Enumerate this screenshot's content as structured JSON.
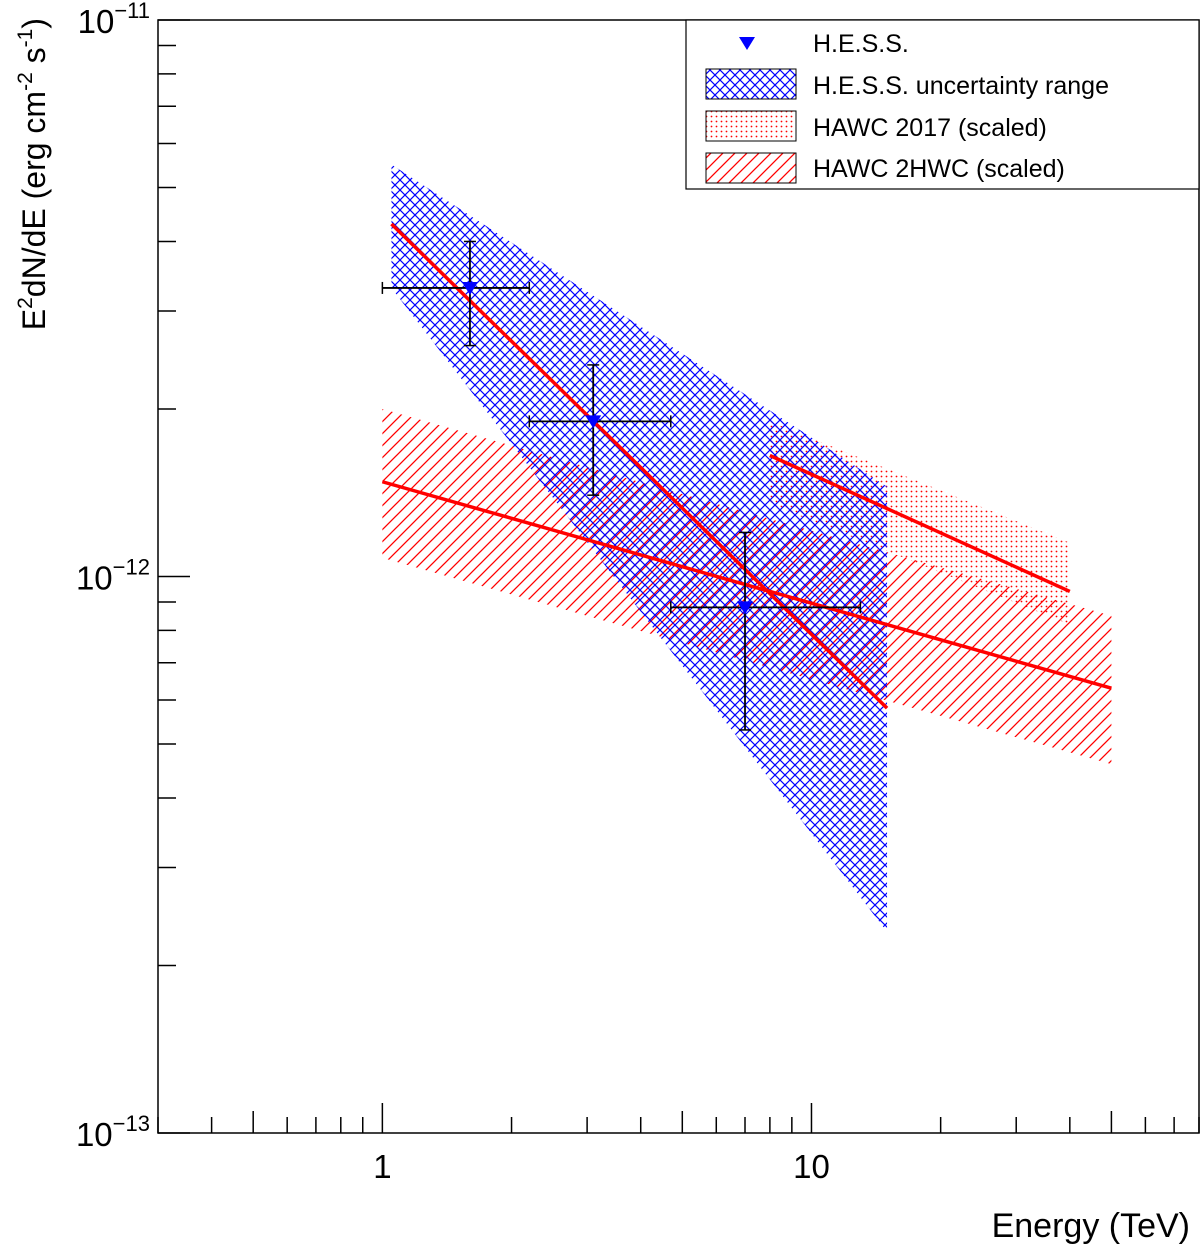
{
  "chart_data": {
    "type": "scatter",
    "title": "",
    "xlabel": "Energy (TeV)",
    "ylabel": {
      "prefix": "E",
      "prefix_sup": "2",
      "main": "dN/dE (erg cm",
      "unit_sup1": "-2",
      "mid": " s",
      "unit_sup2": "-1",
      "close": ")"
    },
    "x_scale": "log",
    "y_scale": "log",
    "xlim": [
      0.3,
      80
    ],
    "ylim": [
      1e-13,
      1e-11
    ],
    "x_tick_labels": [
      {
        "value": 1,
        "label": "1"
      },
      {
        "value": 10,
        "label": "10"
      }
    ],
    "y_tick_labels": [
      {
        "value": 1e-11,
        "base": "10",
        "exp": "−11"
      },
      {
        "value": 1e-12,
        "base": "10",
        "exp": "−12"
      },
      {
        "value": 1e-13,
        "base": "10",
        "exp": "−13"
      }
    ],
    "grid": false,
    "legend_position": "top-right",
    "legend": [
      {
        "key": "hess_points",
        "label": "H.E.S.S."
      },
      {
        "key": "hess_band",
        "label": "H.E.S.S. uncertainty range"
      },
      {
        "key": "hawc2017",
        "label": "HAWC 2017 (scaled)"
      },
      {
        "key": "hawc2hwc",
        "label": "HAWC 2HWC (scaled)"
      }
    ],
    "series": [
      {
        "key": "hess_points",
        "name": "H.E.S.S.",
        "kind": "points",
        "color": "#0000ff",
        "points": [
          {
            "x": 1.6,
            "y": 3.3e-12,
            "xerr": [
              1.0,
              2.2
            ],
            "yerr": [
              2.6e-12,
              4e-12
            ]
          },
          {
            "x": 3.1,
            "y": 1.9e-12,
            "xerr": [
              2.2,
              4.7
            ],
            "yerr": [
              1.4e-12,
              2.4e-12
            ]
          },
          {
            "x": 7.0,
            "y": 8.8e-13,
            "xerr": [
              4.7,
              13.0
            ],
            "yerr": [
              5.3e-13,
              1.2e-12
            ]
          }
        ]
      },
      {
        "key": "hess_band",
        "name": "H.E.S.S. uncertainty range",
        "kind": "band",
        "color": "#0000ff",
        "pattern": "crosshatch",
        "x": [
          1.05,
          15
        ],
        "fit_y": [
          4.3e-12,
          5.8e-13
        ],
        "upper": [
          5.5e-12,
          1.45e-12
        ],
        "lower": [
          3.3e-12,
          2.3e-13
        ]
      },
      {
        "key": "hawc2017",
        "name": "HAWC 2017 (scaled)",
        "kind": "band",
        "color": "#ff0000",
        "pattern": "dots",
        "x": [
          8,
          40
        ],
        "fit_y": [
          1.65e-12,
          9.4e-13
        ],
        "upper": [
          1.9e-12,
          1.15e-12
        ],
        "lower": [
          1.35e-12,
          8.2e-13
        ]
      },
      {
        "key": "hawc2hwc",
        "name": "HAWC 2HWC (scaled)",
        "kind": "band",
        "color": "#ff0000",
        "pattern": "diagonal",
        "x": [
          1.0,
          50
        ],
        "fit_y": [
          1.48e-12,
          6.3e-13
        ],
        "upper": [
          2e-12,
          8.5e-13
        ],
        "lower": [
          1.08e-12,
          4.6e-13
        ]
      }
    ]
  }
}
